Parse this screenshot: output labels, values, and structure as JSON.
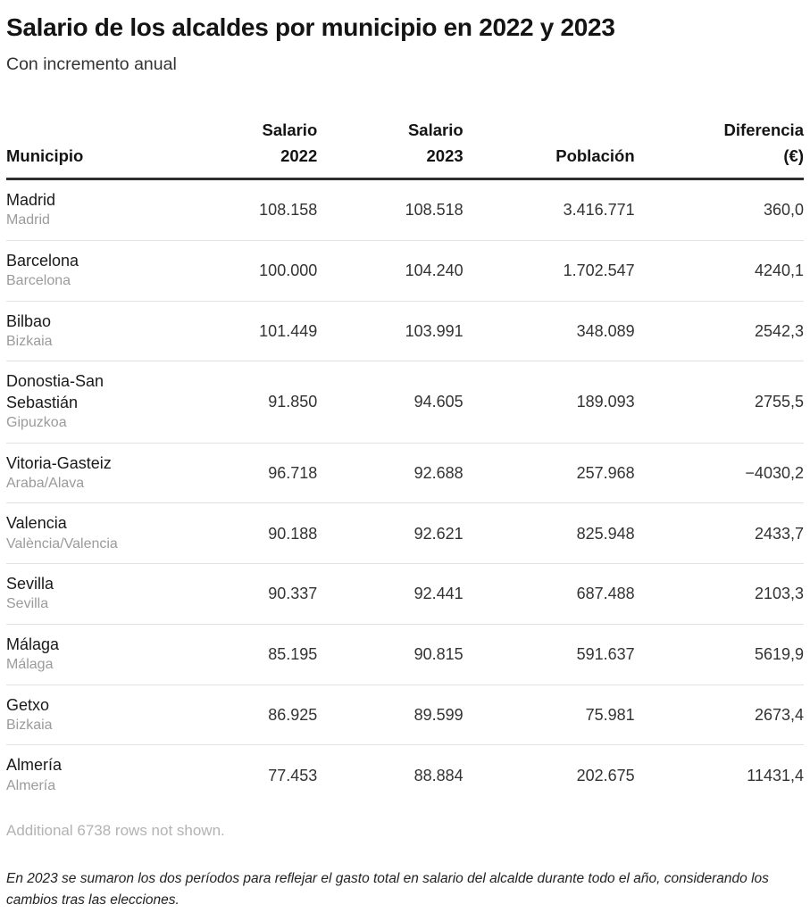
{
  "chart_data": {
    "type": "table",
    "title": "Salario de los alcaldes por municipio en 2022 y 2023",
    "subtitle": "Con incremento anual",
    "columns": [
      {
        "id": "municipio",
        "lines": [
          "Municipio"
        ],
        "align": "left"
      },
      {
        "id": "salario-2022",
        "lines": [
          "Salario",
          "2022"
        ],
        "align": "right"
      },
      {
        "id": "salario-2023",
        "lines": [
          "Salario",
          "2023"
        ],
        "align": "right"
      },
      {
        "id": "poblacion",
        "lines": [
          "Población"
        ],
        "align": "right"
      },
      {
        "id": "diferencia",
        "lines": [
          "Diferencia",
          "(€)"
        ],
        "align": "right"
      }
    ],
    "rows": [
      {
        "municipio": "Madrid",
        "region": "Madrid",
        "salario_2022": "108.158",
        "salario_2023": "108.518",
        "poblacion": "3.416.771",
        "diferencia": "360,0"
      },
      {
        "municipio": "Barcelona",
        "region": "Barcelona",
        "salario_2022": "100.000",
        "salario_2023": "104.240",
        "poblacion": "1.702.547",
        "diferencia": "4240,1"
      },
      {
        "municipio": "Bilbao",
        "region": "Bizkaia",
        "salario_2022": "101.449",
        "salario_2023": "103.991",
        "poblacion": "348.089",
        "diferencia": "2542,3"
      },
      {
        "municipio": "Donostia-San Sebastián",
        "region": "Gipuzkoa",
        "salario_2022": "91.850",
        "salario_2023": "94.605",
        "poblacion": "189.093",
        "diferencia": "2755,5"
      },
      {
        "municipio": "Vitoria-Gasteiz",
        "region": "Araba/Alava",
        "salario_2022": "96.718",
        "salario_2023": "92.688",
        "poblacion": "257.968",
        "diferencia": "−4030,2"
      },
      {
        "municipio": "Valencia",
        "region": "València/Valencia",
        "salario_2022": "90.188",
        "salario_2023": "92.621",
        "poblacion": "825.948",
        "diferencia": "2433,7"
      },
      {
        "municipio": "Sevilla",
        "region": "Sevilla",
        "salario_2022": "90.337",
        "salario_2023": "92.441",
        "poblacion": "687.488",
        "diferencia": "2103,3"
      },
      {
        "municipio": "Málaga",
        "region": "Málaga",
        "salario_2022": "85.195",
        "salario_2023": "90.815",
        "poblacion": "591.637",
        "diferencia": "5619,9"
      },
      {
        "municipio": "Getxo",
        "region": "Bizkaia",
        "salario_2022": "86.925",
        "salario_2023": "89.599",
        "poblacion": "75.981",
        "diferencia": "2673,4"
      },
      {
        "municipio": "Almería",
        "region": "Almería",
        "salario_2022": "77.453",
        "salario_2023": "88.884",
        "poblacion": "202.675",
        "diferencia": "11431,4"
      }
    ],
    "truncation_note": "Additional 6738 rows not shown.",
    "footnote": "En 2023 se sumaron los dos períodos para reflejar el gasto total en salario del alcalde durante todo el año, considerando los cambios tras las elecciones.",
    "layout": {
      "grid": "off",
      "legend": "none"
    }
  },
  "colors": {
    "text_primary": "#1a1a1a",
    "text_numbers": "#333333",
    "text_muted": "#9b9b9b",
    "truncation_note_color": "#b3b3b3",
    "header_rule": "#2e2e2e",
    "row_divider": "#e2e2e2",
    "background": "#ffffff"
  }
}
